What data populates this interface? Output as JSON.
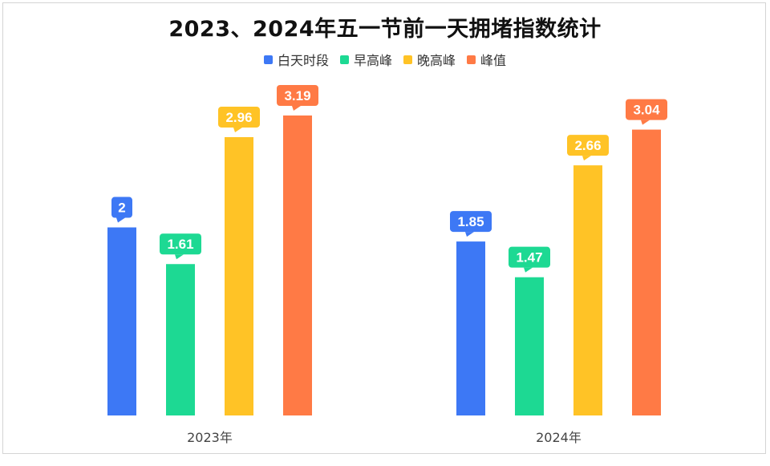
{
  "chart_data": {
    "type": "bar",
    "title": "2023、2024年五一节前一天拥堵指数统计",
    "categories": [
      "2023年",
      "2024年"
    ],
    "series": [
      {
        "name": "白天时段",
        "color": "#3D78F5",
        "values": [
          2,
          1.85
        ],
        "labels": [
          "2",
          "1.85"
        ]
      },
      {
        "name": "早高峰",
        "color": "#1DD993",
        "values": [
          1.61,
          1.47
        ],
        "labels": [
          "1.61",
          "1.47"
        ]
      },
      {
        "name": "晚高峰",
        "color": "#FFC326",
        "values": [
          2.96,
          2.66
        ],
        "labels": [
          "2.96",
          "2.66"
        ]
      },
      {
        "name": "峰值",
        "color": "#FF7A45",
        "values": [
          3.19,
          3.04
        ],
        "labels": [
          "3.19",
          "3.04"
        ]
      }
    ],
    "ylim": [
      0,
      3.19
    ],
    "grid": false,
    "legend": "top-center",
    "data_labels": true
  }
}
